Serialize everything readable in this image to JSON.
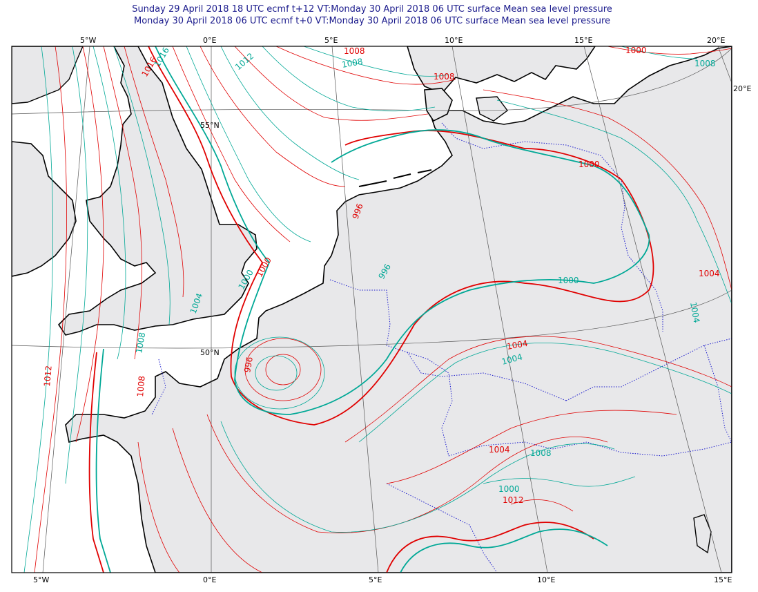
{
  "titles": {
    "line1": "Sunday 29 April 2018 18 UTC ecmf t+12 VT:Monday 30 April 2018 06 UTC surface  Mean sea level pressure",
    "line2": "Monday 30 April 2018 06 UTC ecmf t+0 VT:Monday 30 April 2018 06 UTC surface  Mean sea level pressure"
  },
  "colors": {
    "forecast": "#e00000",
    "analysis": "#00a896",
    "land": "#e8e8ea",
    "sea": "#ffffff",
    "coast": "#000000",
    "border": "#1a1acc",
    "grid": "#555555"
  },
  "axes": {
    "top": [
      "5°W",
      "0°E",
      "5°E",
      "10°E",
      "15°E",
      "20°E"
    ],
    "bottom": [
      "5°W",
      "0°E",
      "5°E",
      "10°E",
      "15°E"
    ],
    "left": [
      "55°N",
      "50°N"
    ],
    "right": [
      "20°E"
    ]
  },
  "contour_labels": {
    "red": [
      "1016",
      "1012",
      "1008",
      "1008",
      "1004",
      "1000",
      "1000",
      "1004",
      "1012",
      "1008",
      "1004",
      "996",
      "996",
      "1012",
      "1008",
      "1000",
      "1004"
    ],
    "teal": [
      "1016",
      "1012",
      "1008",
      "1008",
      "1004",
      "1000",
      "996",
      "1000",
      "1004",
      "1008",
      "1008",
      "1000",
      "1004",
      "1004"
    ]
  }
}
